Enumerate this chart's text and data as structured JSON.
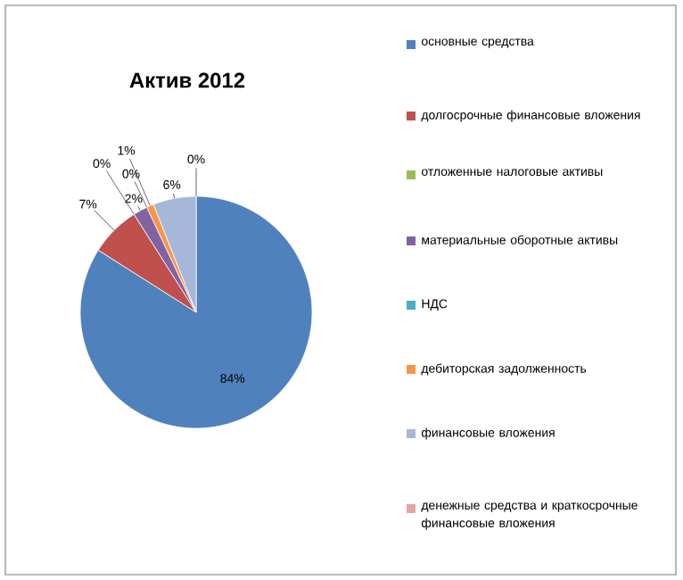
{
  "chart_data": {
    "type": "pie",
    "title": "Актив 2012",
    "categories": [
      "основные средства",
      "долгосрочные финансовые вложения",
      "отложенные налоговые активы",
      "материальные оборотные активы",
      "НДС",
      "дебиторская задолженность",
      "финансовые вложения",
      "денежные средства и краткосрочные финансовые вложения"
    ],
    "values": [
      84,
      7,
      0,
      2,
      0,
      1,
      6,
      0
    ],
    "value_labels": [
      "84%",
      "7%",
      "0%",
      "2%",
      "0%",
      "1%",
      "6%",
      "0%"
    ],
    "colors": [
      "#4f81bd",
      "#c0504d",
      "#9bbb59",
      "#8064a2",
      "#4bacc6",
      "#f79646",
      "#a5b8da",
      "#e6a5a5"
    ],
    "legend": "right"
  }
}
